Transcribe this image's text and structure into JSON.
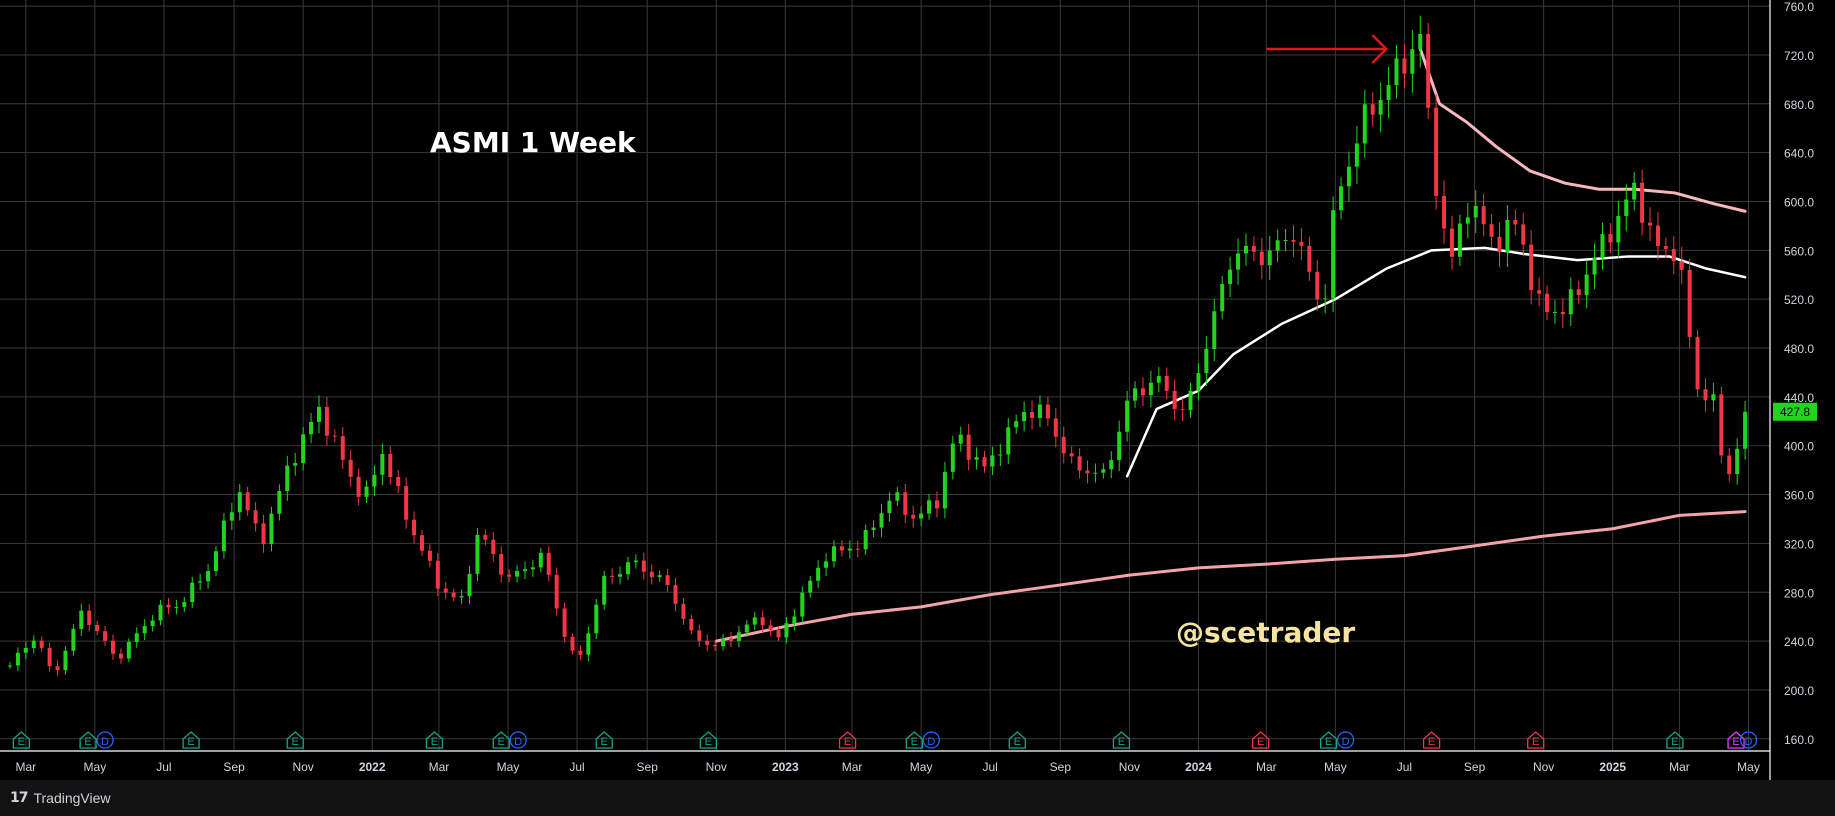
{
  "footer": {
    "logo_icon": "tradingview-logo-icon",
    "brand": "TradingView"
  },
  "colors": {
    "background": "#000000",
    "up": "#22d41f",
    "down": "#f23645",
    "grid": "#3a3a3a",
    "sma_fast": "#ffffff",
    "sma_mid": "#f7b7bd",
    "sma_slow": "#f5a3aa",
    "price_label": "#22d41f",
    "arrow": "#e0161d",
    "watermark": "#f7e3a1"
  },
  "chart_data": {
    "type": "candlestick",
    "title": "ASMI 1 Week",
    "watermark": "@scetrader",
    "interval": "1W",
    "last_price": "427.8",
    "ylim": [
      150,
      765
    ],
    "y_ticks": [
      "760.0",
      "720.0",
      "680.0",
      "640.0",
      "600.0",
      "560.0",
      "520.0",
      "480.0",
      "440.0",
      "400.0",
      "360.0",
      "320.0",
      "280.0",
      "240.0",
      "200.0",
      "160.0"
    ],
    "x_range": [
      "2021-02-15",
      "2025-05-20"
    ],
    "x_ticks": [
      {
        "label": "Mar",
        "date": "2021-03-01"
      },
      {
        "label": "May",
        "date": "2021-05-01"
      },
      {
        "label": "Jul",
        "date": "2021-07-01"
      },
      {
        "label": "Sep",
        "date": "2021-09-01"
      },
      {
        "label": "Nov",
        "date": "2021-11-01"
      },
      {
        "label": "2022",
        "date": "2022-01-01",
        "bold": true
      },
      {
        "label": "Mar",
        "date": "2022-03-01"
      },
      {
        "label": "May",
        "date": "2022-05-01"
      },
      {
        "label": "Jul",
        "date": "2022-07-01"
      },
      {
        "label": "Sep",
        "date": "2022-09-01"
      },
      {
        "label": "Nov",
        "date": "2022-11-01"
      },
      {
        "label": "2023",
        "date": "2023-01-01",
        "bold": true
      },
      {
        "label": "Mar",
        "date": "2023-03-01"
      },
      {
        "label": "May",
        "date": "2023-05-01"
      },
      {
        "label": "Jul",
        "date": "2023-07-01"
      },
      {
        "label": "Sep",
        "date": "2023-09-01"
      },
      {
        "label": "Nov",
        "date": "2023-11-01"
      },
      {
        "label": "2024",
        "date": "2024-01-01",
        "bold": true
      },
      {
        "label": "Mar",
        "date": "2024-03-01"
      },
      {
        "label": "May",
        "date": "2024-05-01"
      },
      {
        "label": "Jul",
        "date": "2024-07-01"
      },
      {
        "label": "Sep",
        "date": "2024-09-01"
      },
      {
        "label": "Nov",
        "date": "2024-11-01"
      },
      {
        "label": "2025",
        "date": "2025-01-01",
        "bold": true
      },
      {
        "label": "Mar",
        "date": "2025-03-01"
      },
      {
        "label": "May",
        "date": "2025-05-01"
      }
    ],
    "price_path": [
      [
        "2021-02-15",
        220
      ],
      [
        "2021-03-10",
        245
      ],
      [
        "2021-03-25",
        210
      ],
      [
        "2021-04-20",
        265
      ],
      [
        "2021-05-20",
        225
      ],
      [
        "2021-06-25",
        265
      ],
      [
        "2021-07-15",
        270
      ],
      [
        "2021-08-10",
        300
      ],
      [
        "2021-09-05",
        365
      ],
      [
        "2021-09-25",
        320
      ],
      [
        "2021-10-20",
        385
      ],
      [
        "2021-11-15",
        430
      ],
      [
        "2021-12-10",
        380
      ],
      [
        "2021-12-25",
        355
      ],
      [
        "2022-01-10",
        395
      ],
      [
        "2022-02-01",
        340
      ],
      [
        "2022-03-01",
        285
      ],
      [
        "2022-03-20",
        270
      ],
      [
        "2022-04-05",
        330
      ],
      [
        "2022-05-01",
        290
      ],
      [
        "2022-06-01",
        310
      ],
      [
        "2022-06-20",
        245
      ],
      [
        "2022-07-01",
        220
      ],
      [
        "2022-07-25",
        290
      ],
      [
        "2022-08-20",
        305
      ],
      [
        "2022-09-20",
        285
      ],
      [
        "2022-10-10",
        245
      ],
      [
        "2022-11-01",
        235
      ],
      [
        "2022-12-10",
        260
      ],
      [
        "2022-12-25",
        240
      ],
      [
        "2023-01-15",
        275
      ],
      [
        "2023-02-05",
        310
      ],
      [
        "2023-03-10",
        320
      ],
      [
        "2023-04-05",
        360
      ],
      [
        "2023-04-25",
        340
      ],
      [
        "2023-05-15",
        355
      ],
      [
        "2023-06-01",
        410
      ],
      [
        "2023-06-25",
        380
      ],
      [
        "2023-07-10",
        400
      ],
      [
        "2023-08-01",
        430
      ],
      [
        "2023-08-20",
        425
      ],
      [
        "2023-09-10",
        385
      ],
      [
        "2023-10-10",
        375
      ],
      [
        "2023-11-01",
        440
      ],
      [
        "2023-11-25",
        455
      ],
      [
        "2023-12-20",
        425
      ],
      [
        "2024-01-10",
        490
      ],
      [
        "2024-02-01",
        560
      ],
      [
        "2024-03-01",
        555
      ],
      [
        "2024-03-25",
        575
      ],
      [
        "2024-04-20",
        510
      ],
      [
        "2024-05-01",
        600
      ],
      [
        "2024-05-25",
        665
      ],
      [
        "2024-06-20",
        700
      ],
      [
        "2024-07-15",
        735
      ],
      [
        "2024-07-25",
        640
      ],
      [
        "2024-08-10",
        545
      ],
      [
        "2024-08-25",
        600
      ],
      [
        "2024-09-20",
        565
      ],
      [
        "2024-10-10",
        585
      ],
      [
        "2024-10-25",
        515
      ],
      [
        "2024-11-20",
        510
      ],
      [
        "2024-12-20",
        560
      ],
      [
        "2025-01-20",
        610
      ],
      [
        "2025-02-10",
        560
      ],
      [
        "2025-02-28",
        560
      ],
      [
        "2025-03-15",
        450
      ],
      [
        "2025-04-01",
        435
      ],
      [
        "2025-04-10",
        370
      ],
      [
        "2025-04-20",
        395
      ],
      [
        "2025-04-28",
        427.8
      ]
    ],
    "sma_fast": [
      [
        "2023-10-30",
        375
      ],
      [
        "2023-11-25",
        430
      ],
      [
        "2024-01-01",
        445
      ],
      [
        "2024-02-01",
        475
      ],
      [
        "2024-03-15",
        500
      ],
      [
        "2024-05-01",
        520
      ],
      [
        "2024-06-15",
        545
      ],
      [
        "2024-07-25",
        560
      ],
      [
        "2024-09-10",
        562
      ],
      [
        "2024-10-15",
        557
      ],
      [
        "2024-12-01",
        552
      ],
      [
        "2025-01-15",
        555
      ],
      [
        "2025-02-20",
        555
      ],
      [
        "2025-03-25",
        545
      ],
      [
        "2025-04-28",
        538
      ]
    ],
    "sma_mid": [
      [
        "2024-07-15",
        725
      ],
      [
        "2024-08-01",
        680
      ],
      [
        "2024-08-25",
        665
      ],
      [
        "2024-09-20",
        645
      ],
      [
        "2024-10-20",
        625
      ],
      [
        "2024-11-20",
        615
      ],
      [
        "2024-12-20",
        610
      ],
      [
        "2025-01-20",
        610
      ],
      [
        "2025-02-25",
        607
      ],
      [
        "2025-04-01",
        598
      ],
      [
        "2025-04-28",
        592
      ]
    ],
    "sma_slow": [
      [
        "2022-11-01",
        240
      ],
      [
        "2023-01-01",
        252
      ],
      [
        "2023-03-01",
        262
      ],
      [
        "2023-05-01",
        268
      ],
      [
        "2023-07-01",
        278
      ],
      [
        "2023-09-01",
        286
      ],
      [
        "2023-11-01",
        294
      ],
      [
        "2024-01-01",
        300
      ],
      [
        "2024-03-01",
        303
      ],
      [
        "2024-05-01",
        307
      ],
      [
        "2024-07-01",
        310
      ],
      [
        "2024-09-01",
        318
      ],
      [
        "2024-11-01",
        326
      ],
      [
        "2025-01-01",
        332
      ],
      [
        "2025-03-01",
        343
      ],
      [
        "2025-04-28",
        346
      ]
    ],
    "annotations": {
      "arrow": {
        "x_start": "2024-03-01",
        "x_end": "2024-06-15",
        "y": 720
      },
      "title_position": "top-left",
      "watermark_position": "bottom-center"
    },
    "event_markers": [
      {
        "type": "E",
        "date": "2021-02-25",
        "color": "#17a589"
      },
      {
        "type": "E",
        "date": "2021-04-25",
        "color": "#17a589"
      },
      {
        "type": "D",
        "date": "2021-05-10",
        "color": "#2962ff"
      },
      {
        "type": "E",
        "date": "2021-07-25",
        "color": "#17a589"
      },
      {
        "type": "E",
        "date": "2021-10-25",
        "color": "#17a589"
      },
      {
        "type": "E",
        "date": "2022-02-25",
        "color": "#17a589"
      },
      {
        "type": "E",
        "date": "2022-04-25",
        "color": "#17a589"
      },
      {
        "type": "D",
        "date": "2022-05-10",
        "color": "#2962ff"
      },
      {
        "type": "E",
        "date": "2022-07-25",
        "color": "#17a589"
      },
      {
        "type": "E",
        "date": "2022-10-25",
        "color": "#17a589"
      },
      {
        "type": "E",
        "date": "2023-02-25",
        "color": "#f23645"
      },
      {
        "type": "E",
        "date": "2023-04-25",
        "color": "#17a589"
      },
      {
        "type": "D",
        "date": "2023-05-10",
        "color": "#2962ff"
      },
      {
        "type": "E",
        "date": "2023-07-25",
        "color": "#17a589"
      },
      {
        "type": "E",
        "date": "2023-10-25",
        "color": "#17a589"
      },
      {
        "type": "E",
        "date": "2024-02-25",
        "color": "#f23645"
      },
      {
        "type": "E",
        "date": "2024-04-25",
        "color": "#17a589"
      },
      {
        "type": "D",
        "date": "2024-05-10",
        "color": "#2962ff"
      },
      {
        "type": "E",
        "date": "2024-07-25",
        "color": "#f23645"
      },
      {
        "type": "E",
        "date": "2024-10-25",
        "color": "#f23645"
      },
      {
        "type": "E",
        "date": "2025-02-25",
        "color": "#17a589"
      },
      {
        "type": "E",
        "date": "2025-04-20",
        "color": "#e040fb"
      },
      {
        "type": "D",
        "date": "2025-05-01",
        "color": "#2962ff"
      }
    ]
  }
}
